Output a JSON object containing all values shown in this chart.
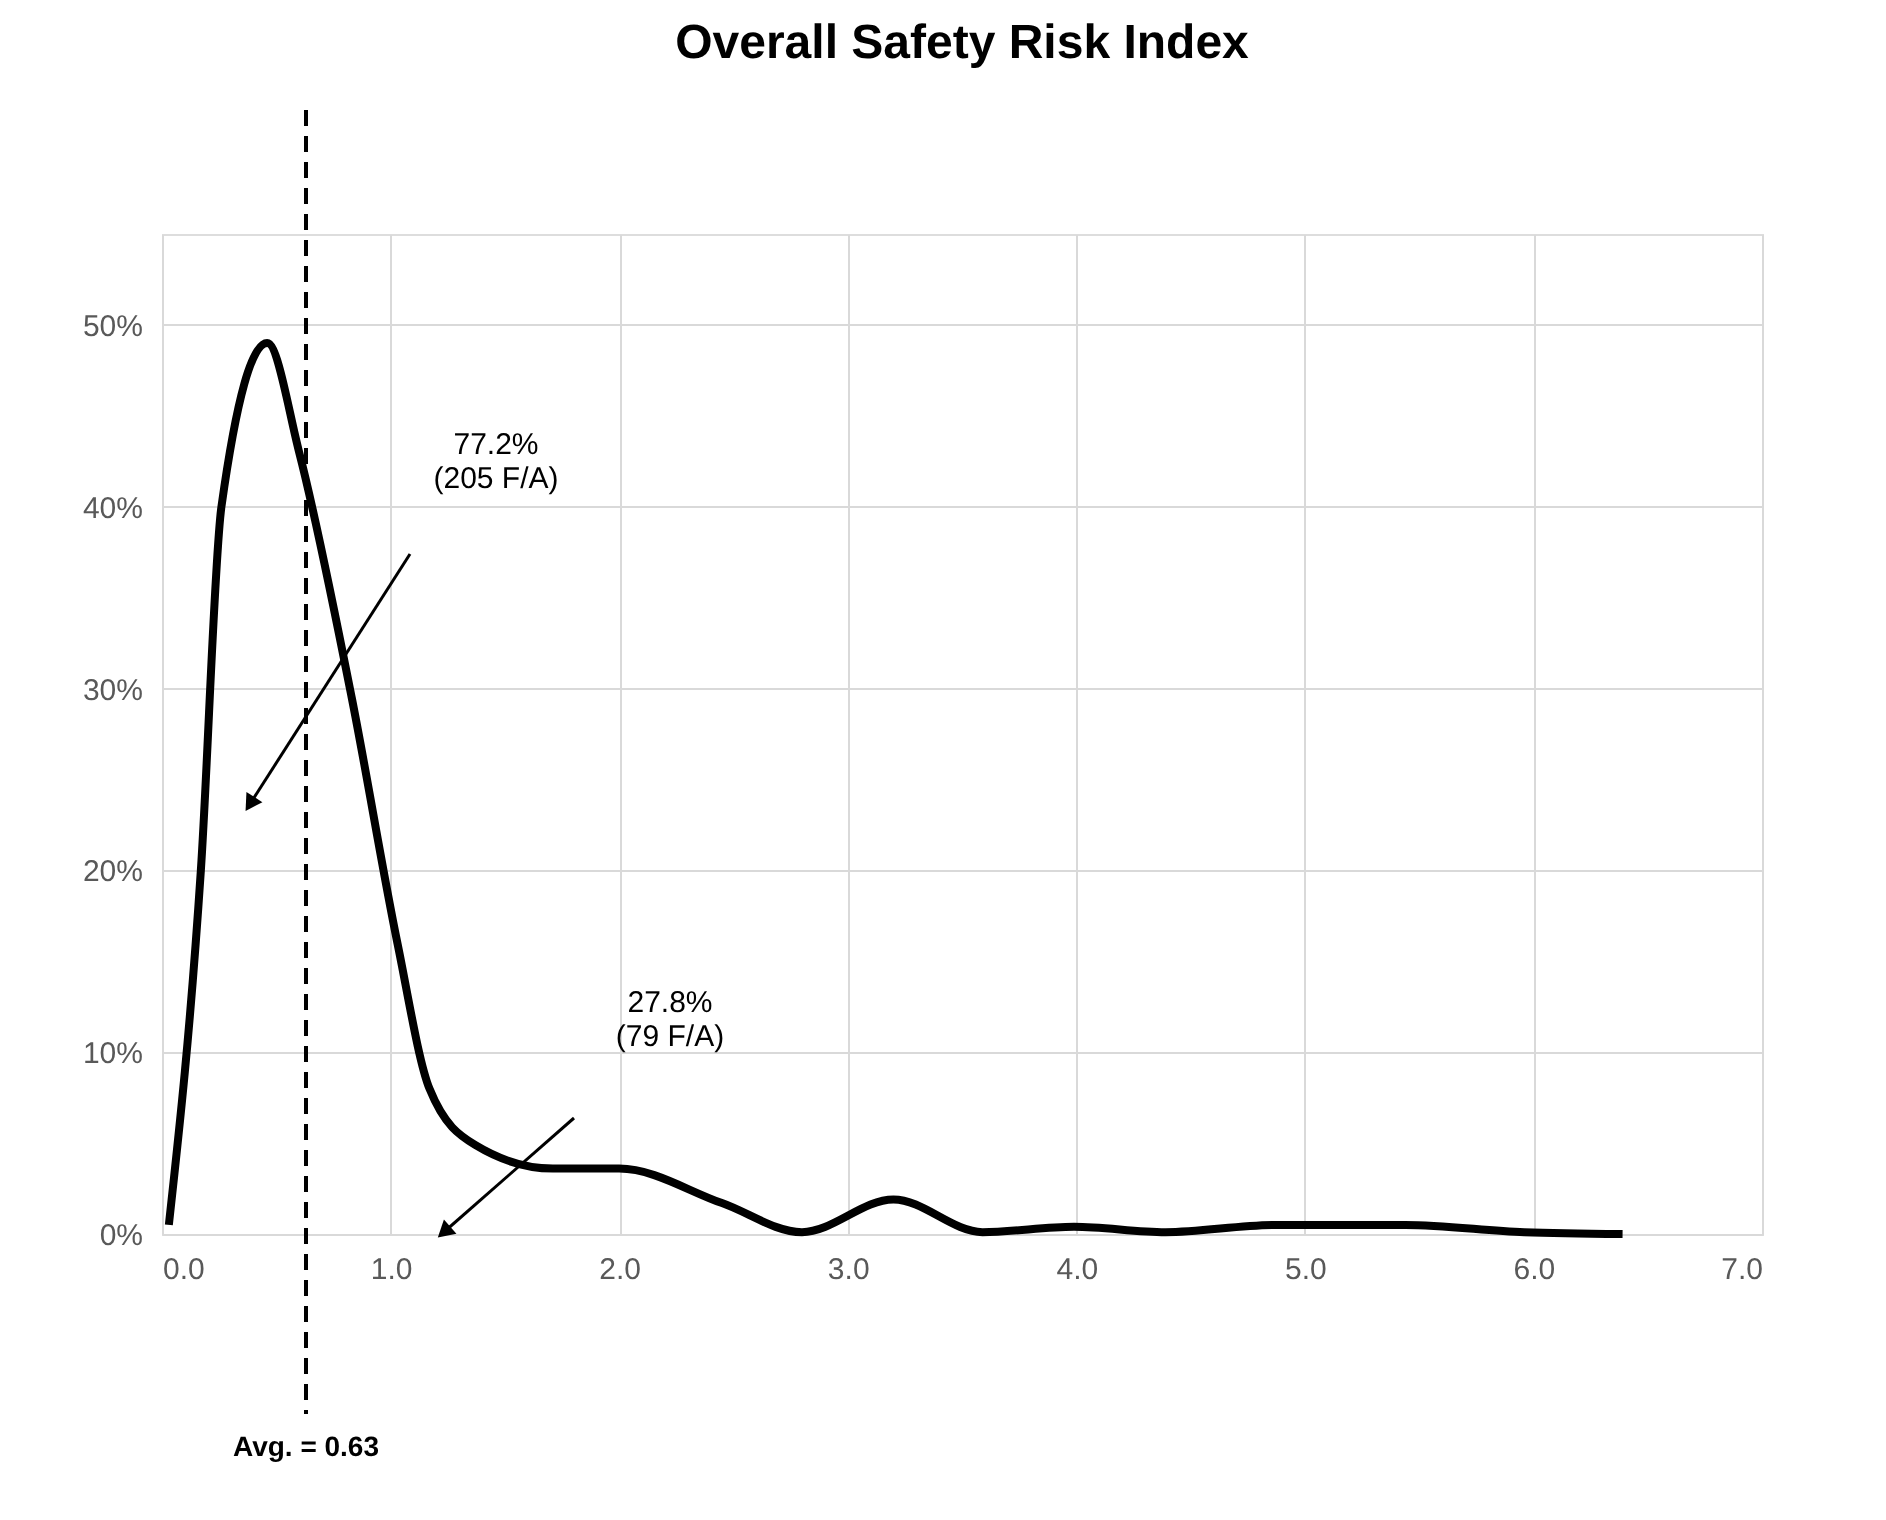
{
  "chart_data": {
    "type": "line",
    "title": "Overall Safety Risk Index",
    "x": [
      0.03,
      0.17,
      0.26,
      0.46,
      0.6,
      0.83,
      1.03,
      1.17,
      1.37,
      1.71,
      2.0,
      2.45,
      2.8,
      3.2,
      3.59,
      3.99,
      4.39,
      4.87,
      5.44,
      5.96,
      6.39
    ],
    "series": [
      {
        "color": "#000000",
        "values": [
          0.5,
          20,
          40,
          49,
          43,
          29.5,
          16,
          8,
          4.9,
          3.6,
          3.6,
          1.7,
          0.1,
          1.9,
          0.1,
          0.4,
          0.1,
          0.5,
          0.5,
          0.1,
          0
        ]
      }
    ],
    "xlim": [
      0,
      7
    ],
    "ylim": [
      0,
      55
    ],
    "xticks": [
      {
        "value": 0,
        "label": "0.0"
      },
      {
        "value": 1,
        "label": "1.0"
      },
      {
        "value": 2,
        "label": "2.0"
      },
      {
        "value": 3,
        "label": "3.0"
      },
      {
        "value": 4,
        "label": "4.0"
      },
      {
        "value": 5,
        "label": "5.0"
      },
      {
        "value": 6,
        "label": "6.0"
      },
      {
        "value": 7,
        "label": "7.0"
      }
    ],
    "yticks": [
      {
        "value": 0,
        "label": "0%"
      },
      {
        "value": 10,
        "label": "10%"
      },
      {
        "value": 20,
        "label": "20%"
      },
      {
        "value": 30,
        "label": "30%"
      },
      {
        "value": 40,
        "label": "40%"
      },
      {
        "value": 50,
        "label": "50%"
      }
    ],
    "ref_lines": [
      {
        "axis": "x",
        "value": 0.63,
        "label": "Avg. = 0.63",
        "line_style": "dashed",
        "color": "#000000"
      }
    ],
    "annotations": [
      "77.2%\n(205 F/A)",
      "27.8%\n(79 F/A)"
    ],
    "grid": true,
    "legend": false,
    "marker": "none",
    "line_style": "solid"
  }
}
